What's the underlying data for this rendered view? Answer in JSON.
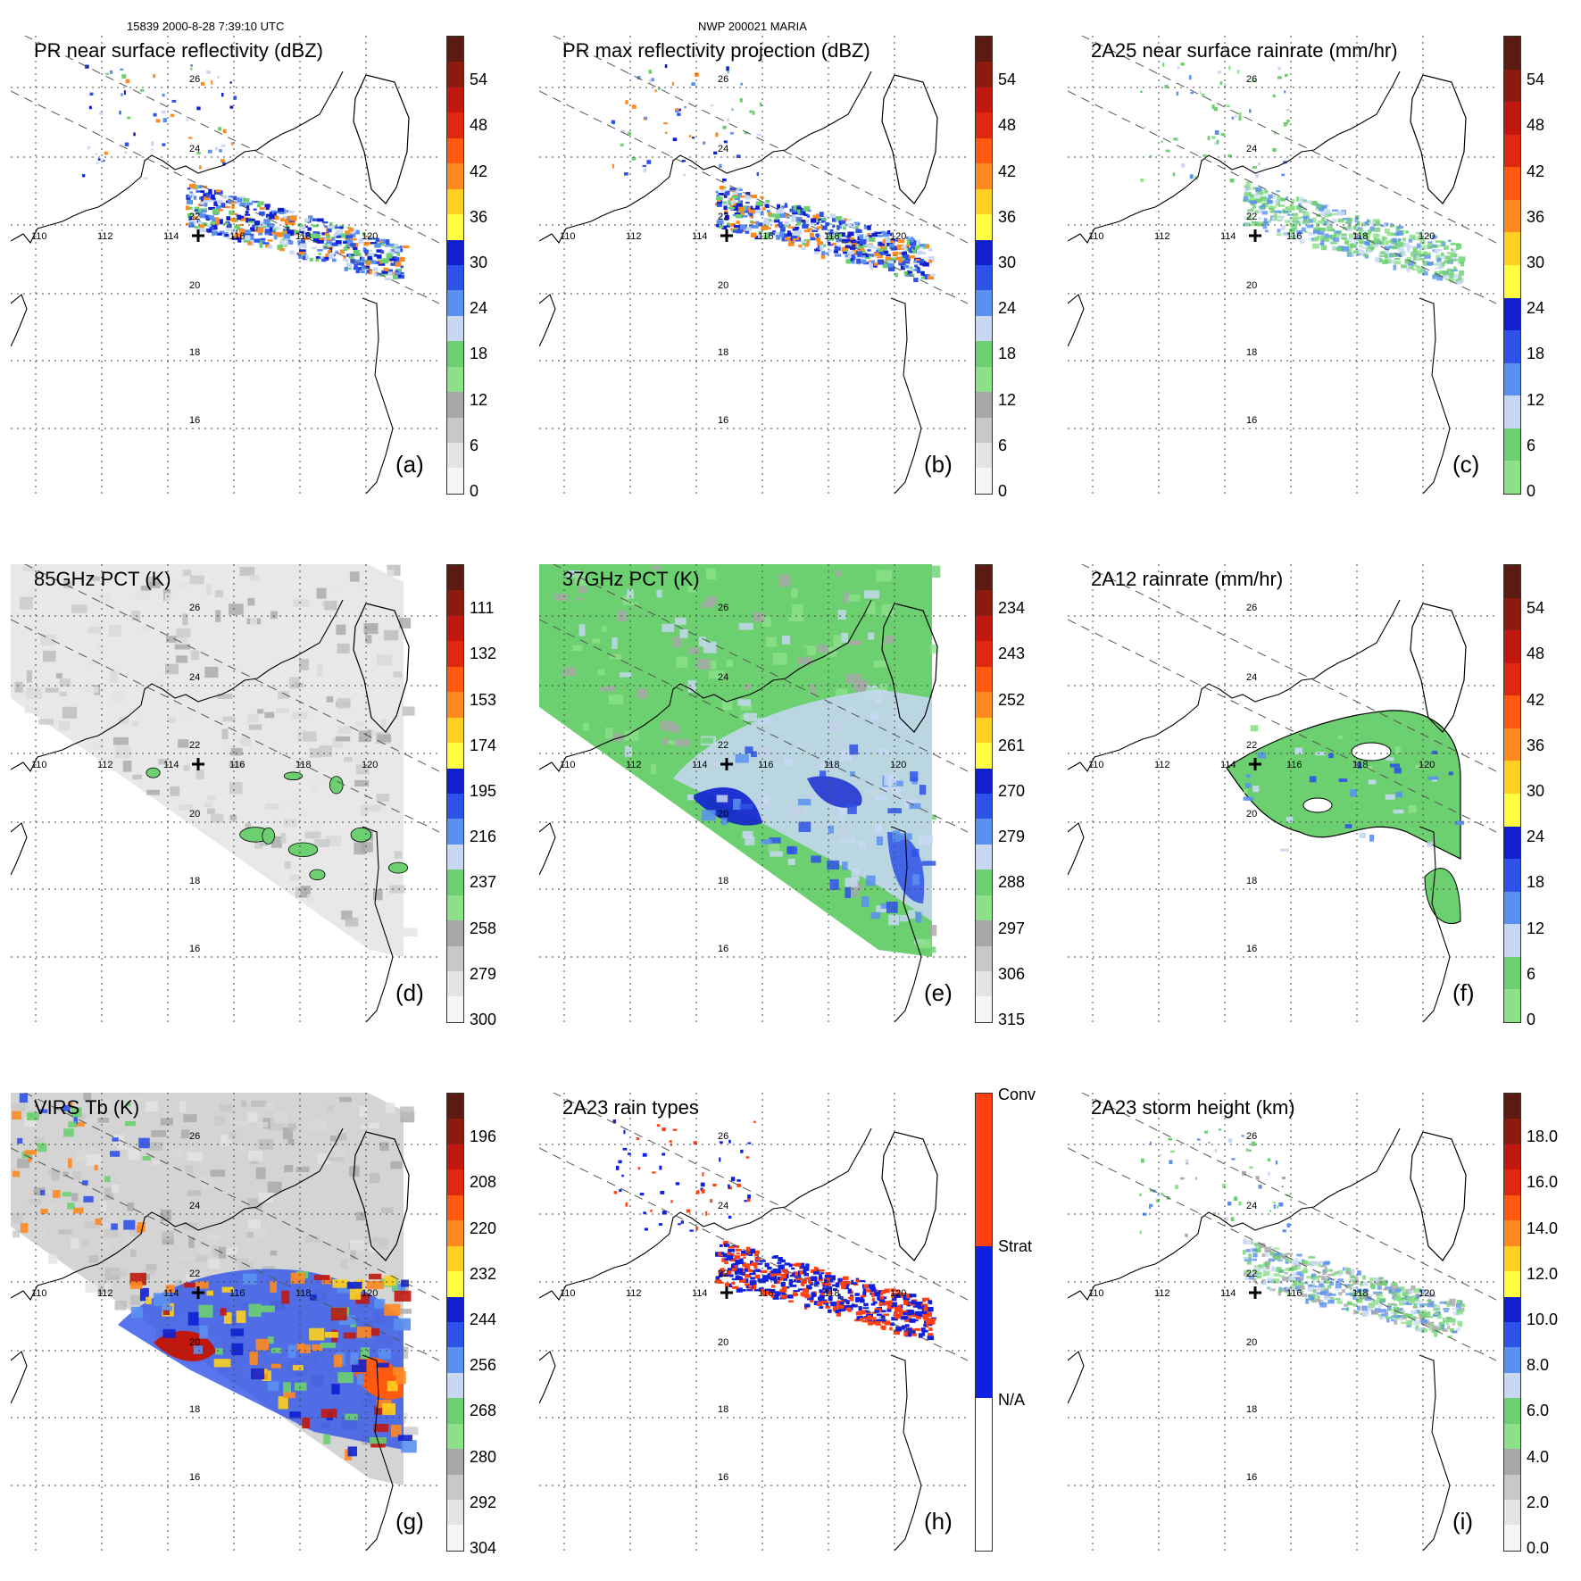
{
  "header": {
    "left": "15839 2000-8-28 7:39:10 UTC",
    "center": "NWP 200021 MARIA"
  },
  "map_labels": {
    "lon": [
      "110",
      "112",
      "114",
      "116",
      "118",
      "120"
    ],
    "lat": [
      "26",
      "24",
      "22",
      "20",
      "18",
      "16"
    ]
  },
  "panels": [
    {
      "id": "a",
      "title": "PR near surface reflectivity (dBZ)",
      "label": "(a)",
      "ticks": [
        "54",
        "48",
        "42",
        "36",
        "30",
        "24",
        "18",
        "12",
        "6",
        "0"
      ],
      "colors": [
        "#5a1c12",
        "#8b1a10",
        "#c0180e",
        "#e02810",
        "#ff5a10",
        "#ff8a20",
        "#ffd020",
        "#ffff40",
        "#1020d0",
        "#2e52e8",
        "#5a90f0",
        "#c8d8f4",
        "#6cd070",
        "#8ce08a",
        "#a8a8a8",
        "#c8c8c8",
        "#e4e4e4",
        "#f6f6f6"
      ],
      "field": "ref"
    },
    {
      "id": "b",
      "title": "PR max reflectivity projection (dBZ)",
      "label": "(b)",
      "ticks": [
        "54",
        "48",
        "42",
        "36",
        "30",
        "24",
        "18",
        "12",
        "6",
        "0"
      ],
      "colors": [
        "#5a1c12",
        "#8b1a10",
        "#c0180e",
        "#e02810",
        "#ff5a10",
        "#ff8a20",
        "#ffd020",
        "#ffff40",
        "#1020d0",
        "#2e52e8",
        "#5a90f0",
        "#c8d8f4",
        "#6cd070",
        "#8ce08a",
        "#a8a8a8",
        "#c8c8c8",
        "#e4e4e4",
        "#f6f6f6"
      ],
      "field": "refmax"
    },
    {
      "id": "c",
      "title": "2A25 near surface rainrate (mm/hr)",
      "label": "(c)",
      "ticks": [
        "54",
        "48",
        "42",
        "36",
        "30",
        "24",
        "18",
        "12",
        "6",
        "0"
      ],
      "colors": [
        "#5a1c12",
        "#8b1a10",
        "#c0180e",
        "#e02810",
        "#ff5a10",
        "#ff8a20",
        "#ffd020",
        "#ffff40",
        "#1020d0",
        "#2e52e8",
        "#5a90f0",
        "#c8d8f4",
        "#6cd070",
        "#8ce08a"
      ],
      "field": "rain"
    },
    {
      "id": "d",
      "title": "85GHz PCT (K)",
      "label": "(d)",
      "ticks": [
        "111",
        "132",
        "153",
        "174",
        "195",
        "216",
        "237",
        "258",
        "279",
        "300"
      ],
      "colors": [
        "#5a1c12",
        "#8b1a10",
        "#c0180e",
        "#e02810",
        "#ff5a10",
        "#ff8a20",
        "#ffd020",
        "#ffff40",
        "#1020d0",
        "#2e52e8",
        "#5a90f0",
        "#c8d8f4",
        "#6cd070",
        "#8ce08a",
        "#a8a8a8",
        "#c8c8c8",
        "#e4e4e4",
        "#f6f6f6"
      ],
      "field": "pct85"
    },
    {
      "id": "e",
      "title": "37GHz PCT (K)",
      "label": "(e)",
      "ticks": [
        "234",
        "243",
        "252",
        "261",
        "270",
        "279",
        "288",
        "297",
        "306",
        "315"
      ],
      "colors": [
        "#5a1c12",
        "#8b1a10",
        "#c0180e",
        "#e02810",
        "#ff5a10",
        "#ff8a20",
        "#ffd020",
        "#ffff40",
        "#1020d0",
        "#2e52e8",
        "#5a90f0",
        "#c8d8f4",
        "#6cd070",
        "#8ce08a",
        "#a8a8a8",
        "#c8c8c8",
        "#e4e4e4",
        "#f6f6f6"
      ],
      "field": "pct37"
    },
    {
      "id": "f",
      "title": "2A12 rainrate (mm/hr)",
      "label": "(f)",
      "ticks": [
        "54",
        "48",
        "42",
        "36",
        "30",
        "24",
        "18",
        "12",
        "6",
        "0"
      ],
      "colors": [
        "#5a1c12",
        "#8b1a10",
        "#c0180e",
        "#e02810",
        "#ff5a10",
        "#ff8a20",
        "#ffd020",
        "#ffff40",
        "#1020d0",
        "#2e52e8",
        "#5a90f0",
        "#c8d8f4",
        "#6cd070",
        "#8ce08a"
      ],
      "field": "rain12"
    },
    {
      "id": "g",
      "title": "VIRS Tb (K)",
      "label": "(g)",
      "ticks": [
        "196",
        "208",
        "220",
        "232",
        "244",
        "256",
        "268",
        "280",
        "292",
        "304"
      ],
      "colors": [
        "#5a1c12",
        "#8b1a10",
        "#c0180e",
        "#e02810",
        "#ff5a10",
        "#ff8a20",
        "#ffd020",
        "#ffff40",
        "#1020d0",
        "#2e52e8",
        "#5a90f0",
        "#c8d8f4",
        "#6cd070",
        "#8ce08a",
        "#a8a8a8",
        "#c8c8c8",
        "#e4e4e4",
        "#f6f6f6"
      ],
      "field": "virs"
    },
    {
      "id": "h",
      "title": "2A23 rain types",
      "label": "(h)",
      "ticks": [
        "Conv",
        "Strat",
        "N/A"
      ],
      "colors": [
        "#ff4010",
        "#1020e0",
        "#ffffff"
      ],
      "field": "types"
    },
    {
      "id": "i",
      "title": "2A23 storm height (km)",
      "label": "(i)",
      "ticks": [
        "18.0",
        "16.0",
        "14.0",
        "12.0",
        "10.0",
        "8.0",
        "6.0",
        "4.0",
        "2.0",
        "0.0"
      ],
      "colors": [
        "#5a1c12",
        "#8b1a10",
        "#c0180e",
        "#e02810",
        "#ff5a10",
        "#ff8a20",
        "#ffd020",
        "#ffff40",
        "#1020d0",
        "#2e52e8",
        "#5a90f0",
        "#c8d8f4",
        "#6cd070",
        "#8ce08a",
        "#a8a8a8",
        "#c8c8c8",
        "#e4e4e4",
        "#f6f6f6"
      ],
      "field": "height"
    }
  ]
}
